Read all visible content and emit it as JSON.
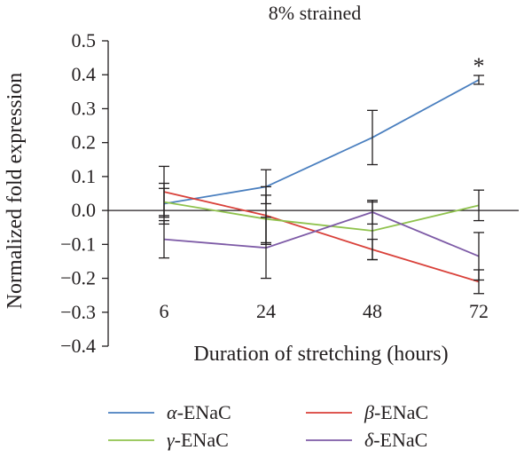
{
  "chart_data": {
    "type": "line",
    "title": "8% strained",
    "xlabel": "Duration of stretching (hours)",
    "ylabel": "Normalized fold expression",
    "categories": [
      "6",
      "24",
      "48",
      "72"
    ],
    "yticks": [
      "0.5",
      "0.4",
      "0.3",
      "0.2",
      "0.1",
      "0.0",
      "−0.1",
      "−0.2",
      "−0.3",
      "−0.4"
    ],
    "ylim": [
      -0.4,
      0.5
    ],
    "grid": false,
    "legend_position": "bottom",
    "series": [
      {
        "name": "α-ENaC",
        "color": "#4a7fbf",
        "values": [
          0.02,
          0.07,
          0.215,
          0.385
        ],
        "errors": [
          0.06,
          0.05,
          0.08,
          0.013
        ]
      },
      {
        "name": "β-ENaC",
        "color": "#d9413a",
        "values": [
          0.055,
          -0.015,
          -0.115,
          -0.21
        ],
        "errors": [
          0.075,
          0.085,
          0.03,
          0.035
        ]
      },
      {
        "name": "γ-ENaC",
        "color": "#8fc24d",
        "values": [
          0.025,
          -0.025,
          -0.06,
          0.015
        ],
        "errors": [
          0.04,
          0.07,
          0.085,
          0.045
        ]
      },
      {
        "name": "δ-ENaC",
        "color": "#7d5aa6",
        "values": [
          -0.085,
          -0.11,
          -0.005,
          -0.135
        ],
        "errors": [
          0.055,
          0.09,
          0.035,
          0.07
        ]
      }
    ],
    "annotations": [
      {
        "text": "*",
        "series": 0,
        "category": "72"
      }
    ]
  }
}
